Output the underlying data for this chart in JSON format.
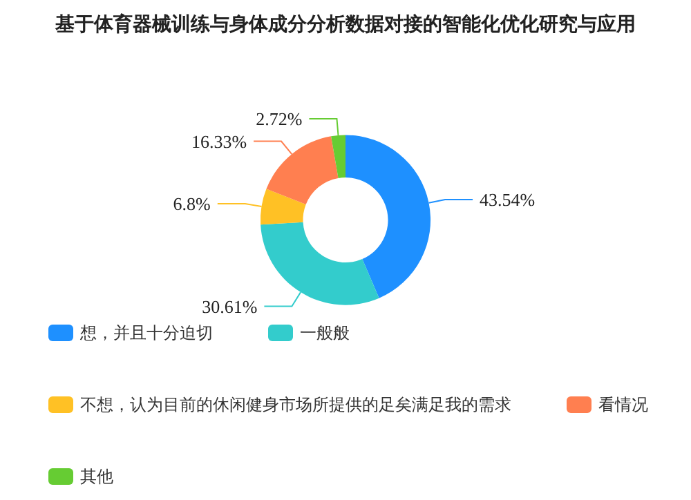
{
  "chart_data": {
    "type": "donut",
    "title": "基于体育器械训练与身体成分分析数据对接的智能化优化研究与应用",
    "categories": [
      "想，并且十分迫切",
      "一般般",
      "不想，认为目前的休闲健身市场所提供的足矣满足我的需求",
      "看情况",
      "其他"
    ],
    "values": [
      43.54,
      30.61,
      6.8,
      16.33,
      2.72
    ],
    "value_labels": [
      "43.54%",
      "30.61%",
      "6.8%",
      "16.33%",
      "2.72%"
    ],
    "colors": [
      "#1e90ff",
      "#33cccc",
      "#ffc125",
      "#ff7f50",
      "#66cc33"
    ],
    "legend": "bottom"
  }
}
